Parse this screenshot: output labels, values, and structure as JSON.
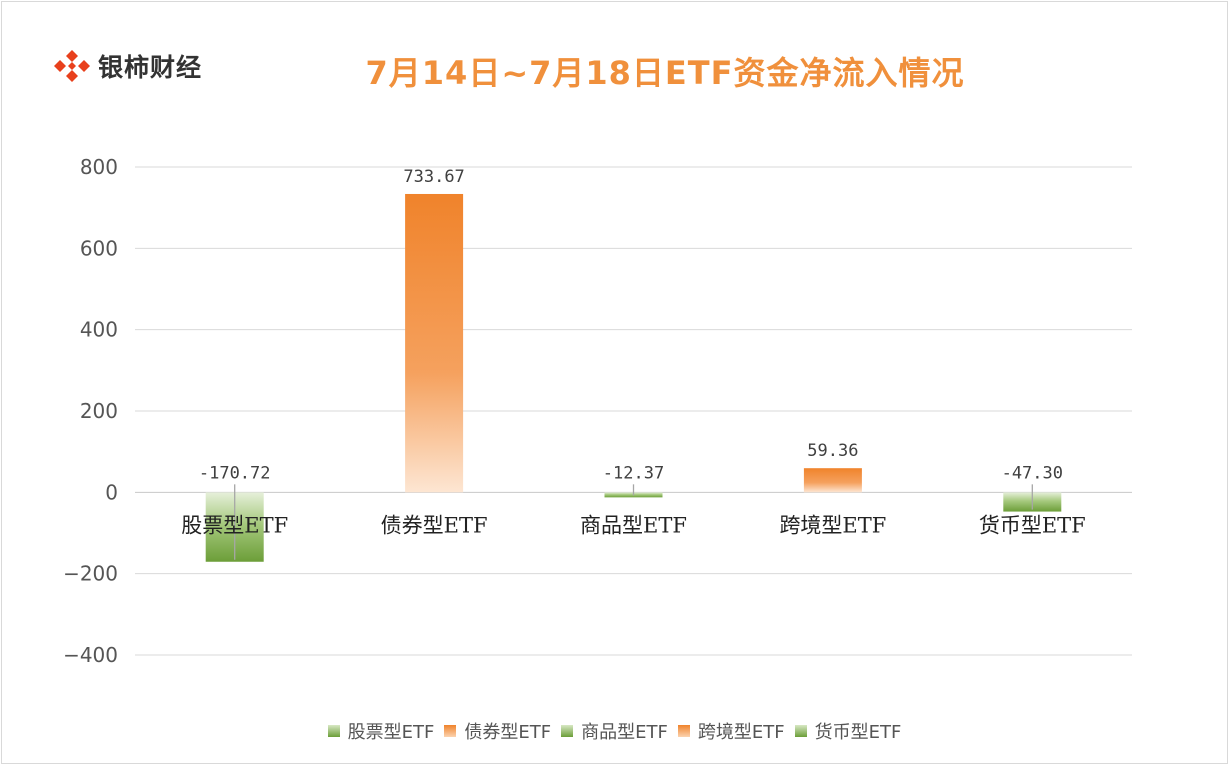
{
  "brand": {
    "name": "银柿财经",
    "logo_icon": "diamond-tiles-logo-icon",
    "logo_color": "#e8401c"
  },
  "chart_data": {
    "type": "bar",
    "title": "7月14日~7月18日ETF资金净流入情况",
    "categories": [
      "股票型ETF",
      "债券型ETF",
      "商品型ETF",
      "跨境型ETF",
      "货币型ETF"
    ],
    "values": [
      -170.72,
      733.67,
      -12.37,
      59.36,
      -47.3
    ],
    "value_labels": [
      "-170.72",
      "733.67",
      "-12.37",
      "59.36",
      "-47.30"
    ],
    "series_colors": [
      "#7aab45",
      "#f0832b",
      "#7aab45",
      "#f0832b",
      "#7aab45"
    ],
    "ylim": [
      -400,
      800
    ],
    "yticks": [
      800,
      600,
      400,
      200,
      0,
      -200,
      -400
    ],
    "ytick_labels": [
      "800",
      "600",
      "400",
      "200",
      "0",
      "−200",
      "−400"
    ],
    "grid": true,
    "legend_position": "bottom",
    "xlabel": "",
    "ylabel": ""
  }
}
